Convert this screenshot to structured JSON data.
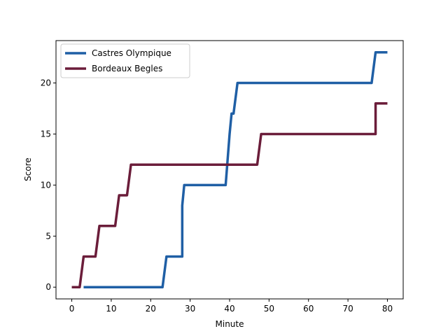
{
  "chart_data": {
    "type": "line",
    "xlabel": "Minute",
    "ylabel": "Score",
    "xlim": [
      -4,
      84
    ],
    "ylim": [
      -1.15,
      24.15
    ],
    "xticks": [
      0,
      10,
      20,
      30,
      40,
      50,
      60,
      70,
      80
    ],
    "yticks": [
      0,
      5,
      10,
      15,
      20
    ],
    "legend_position": "upper-left",
    "grid": false,
    "series": [
      {
        "name": "Castres Olympique",
        "color": "#1f5fa5",
        "points": [
          [
            3,
            0
          ],
          [
            23,
            0
          ],
          [
            24,
            3
          ],
          [
            28,
            3
          ],
          [
            28,
            8
          ],
          [
            28.5,
            10
          ],
          [
            39,
            10
          ],
          [
            40,
            15
          ],
          [
            40.5,
            17
          ],
          [
            41,
            17
          ],
          [
            42,
            20
          ],
          [
            76,
            20
          ],
          [
            77,
            23
          ],
          [
            80,
            23
          ]
        ]
      },
      {
        "name": "Bordeaux Begles",
        "color": "#6b1d3a",
        "points": [
          [
            0,
            0
          ],
          [
            2,
            0
          ],
          [
            3,
            3
          ],
          [
            6,
            3
          ],
          [
            7,
            6
          ],
          [
            11,
            6
          ],
          [
            12,
            9
          ],
          [
            14,
            9
          ],
          [
            15,
            12
          ],
          [
            47,
            12
          ],
          [
            48,
            15
          ],
          [
            77,
            15
          ],
          [
            77,
            18
          ],
          [
            80,
            18
          ]
        ]
      }
    ]
  }
}
